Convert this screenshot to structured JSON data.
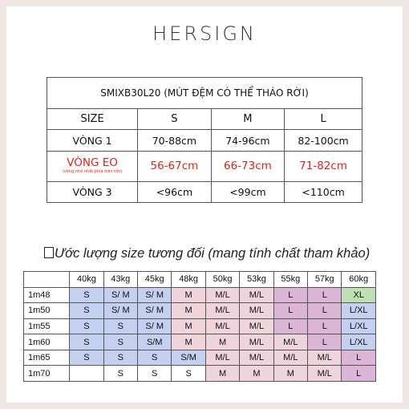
{
  "brand": "HERSIGN",
  "size_table": {
    "title": "SMIXB30L20 (MÚT ĐỆM CÓ THỂ THÁO RỜI)",
    "header": [
      "SIZE",
      "S",
      "M",
      "L"
    ],
    "rows": [
      {
        "label": "VÒNG 1",
        "note": "",
        "values": [
          "70-88cm",
          "74-96cm",
          "82-100cm"
        ],
        "highlight": false
      },
      {
        "label": "VÒNG EO",
        "note": "(vòng nhỏ nhất phía trên rốn)",
        "values": [
          "56-67cm",
          "66-73cm",
          "71-82cm"
        ],
        "highlight": true
      },
      {
        "label": "VÒNG 3",
        "note": "",
        "values": [
          "<96cm",
          "<99cm",
          "<110cm"
        ],
        "highlight": false
      }
    ]
  },
  "estimate": {
    "heading": "Ước lượng size tương đối (mang tính chất tham khảo)",
    "weights": [
      "40kg",
      "43kg",
      "45kg",
      "48kg",
      "50kg",
      "53kg",
      "55kg",
      "57kg",
      "60kg"
    ],
    "rows": [
      {
        "height": "1m48",
        "cells": [
          "S",
          "S/ M",
          "S/ M",
          "M",
          "M/L",
          "M/L",
          "L",
          "L",
          "XL"
        ]
      },
      {
        "height": "1m50",
        "cells": [
          "S",
          "S/ M",
          "S/ M",
          "M",
          "M/L",
          "M/L",
          "L",
          "L",
          "L/XL"
        ]
      },
      {
        "height": "1m55",
        "cells": [
          "S",
          "S",
          "S/ M",
          "M",
          "M/L",
          "M/L",
          "L",
          "L",
          "L/XL"
        ]
      },
      {
        "height": "1m60",
        "cells": [
          "S",
          "S",
          "S/M",
          "M",
          "M",
          "M/L",
          "M/L",
          "L",
          "L/XL"
        ]
      },
      {
        "height": "1m65",
        "cells": [
          "S",
          "S",
          "S",
          "S/M",
          "M/L",
          "M/L",
          "M/L",
          "M/L",
          "L"
        ]
      },
      {
        "height": "1m70",
        "cells": [
          "",
          "S",
          "S",
          "S",
          "M",
          "M",
          "M",
          "M/L",
          "L"
        ]
      }
    ],
    "colors": {
      "S": "#c4d0ef",
      "M": "#f0d4dc",
      "L": "#dcb6d6",
      "XL": "#bfe0b4"
    },
    "cell_colors": [
      [
        "blue",
        "blue",
        "blue",
        "pink",
        "pink",
        "pink",
        "purple",
        "purple",
        "green"
      ],
      [
        "blue",
        "blue",
        "blue",
        "pink",
        "pink",
        "pink",
        "purple",
        "purple",
        "blue"
      ],
      [
        "blue",
        "blue",
        "blue",
        "pink",
        "pink",
        "pink",
        "purple",
        "purple",
        "blue"
      ],
      [
        "blue",
        "blue",
        "blue",
        "pink",
        "pink",
        "pink",
        "pink",
        "purple",
        "blue"
      ],
      [
        "blue",
        "blue",
        "blue",
        "blue",
        "pink",
        "pink",
        "pink",
        "pink",
        "purple"
      ],
      [
        "white",
        "white",
        "white",
        "white",
        "pink",
        "pink",
        "pink",
        "pink",
        "purple"
      ]
    ]
  }
}
